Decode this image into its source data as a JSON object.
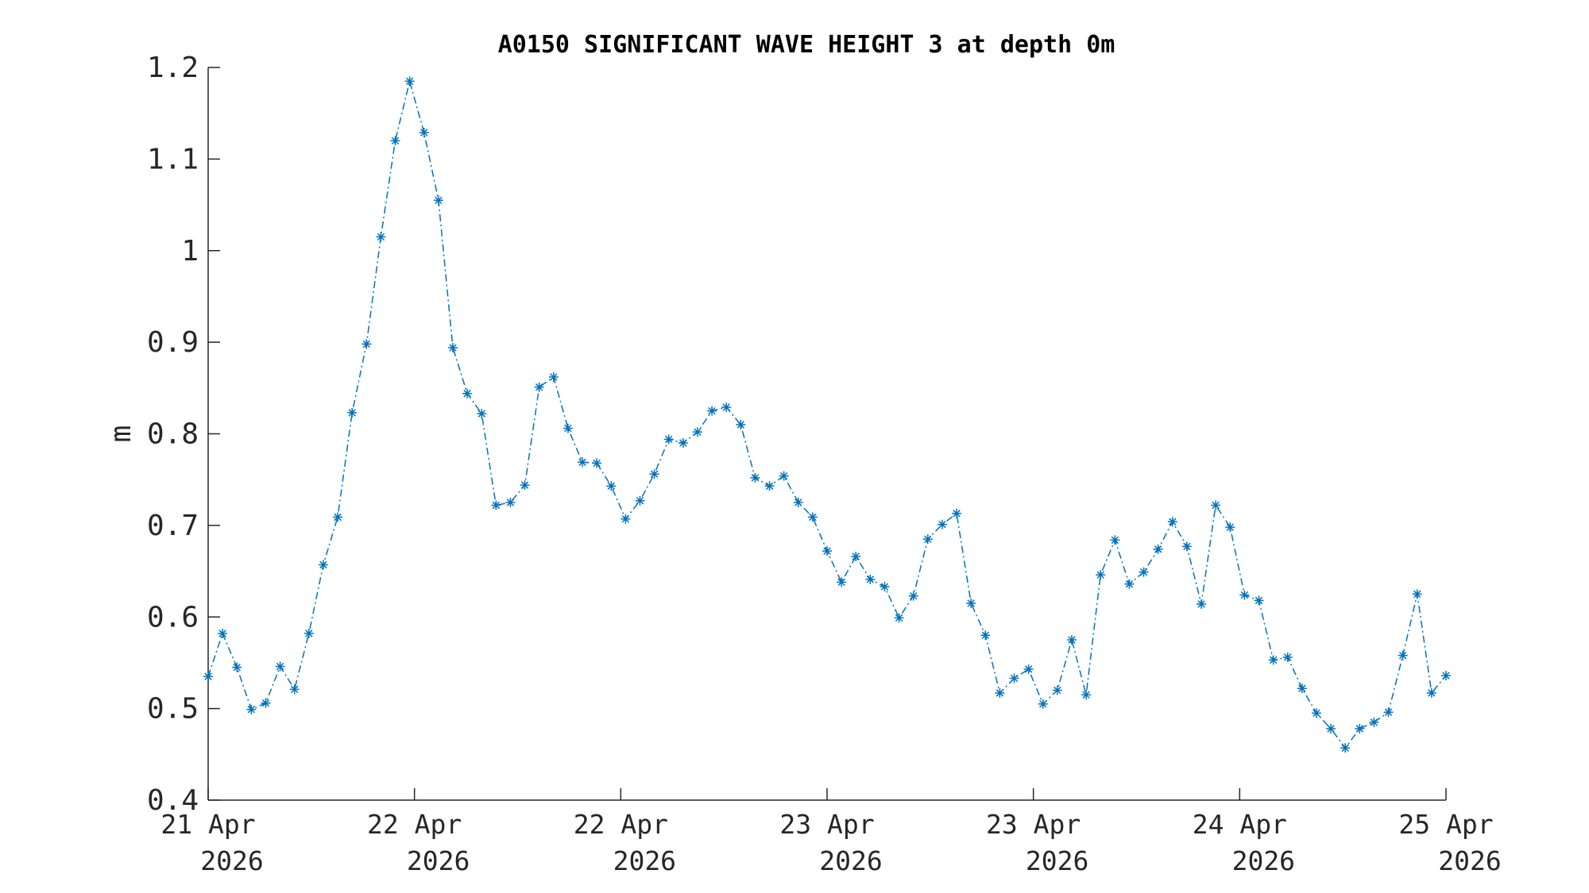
{
  "chart_data": {
    "type": "line",
    "title": "A0150 SIGNIFICANT WAVE HEIGHT 3 at depth 0m",
    "xlabel": "",
    "ylabel": "m",
    "ylim": [
      0.4,
      1.2
    ],
    "yticks": [
      "0.4",
      "0.5",
      "0.6",
      "0.7",
      "0.8",
      "0.9",
      "1",
      "1.1",
      "1.2"
    ],
    "xticks": [
      {
        "line1": "21 Apr",
        "line2": "2026"
      },
      {
        "line1": "22 Apr",
        "line2": "2026"
      },
      {
        "line1": "22 Apr",
        "line2": "2026"
      },
      {
        "line1": "23 Apr",
        "line2": "2026"
      },
      {
        "line1": "23 Apr",
        "line2": "2026"
      },
      {
        "line1": "24 Apr",
        "line2": "2026"
      },
      {
        "line1": "25 Apr",
        "line2": "2026"
      }
    ],
    "grid": false,
    "color": "#0072BD",
    "marker": "asterisk",
    "line_style": "dash-dot",
    "series": [
      {
        "values": [
          0.535,
          0.582,
          0.545,
          0.499,
          0.506,
          0.546,
          0.521,
          0.582,
          0.657,
          0.709,
          0.823,
          0.898,
          1.015,
          1.12,
          1.185,
          1.129,
          1.055,
          0.894,
          0.844,
          0.822,
          0.722,
          0.725,
          0.744,
          0.851,
          0.862,
          0.806,
          0.769,
          0.768,
          0.743,
          0.707,
          0.727,
          0.756,
          0.794,
          0.79,
          0.802,
          0.825,
          0.829,
          0.81,
          0.752,
          0.743,
          0.754,
          0.725,
          0.709,
          0.672,
          0.638,
          0.666,
          0.641,
          0.633,
          0.599,
          0.623,
          0.685,
          0.701,
          0.713,
          0.615,
          0.58,
          0.517,
          0.533,
          0.543,
          0.505,
          0.52,
          0.575,
          0.515,
          0.646,
          0.684,
          0.636,
          0.649,
          0.674,
          0.704,
          0.677,
          0.614,
          0.722,
          0.698,
          0.624,
          0.618,
          0.553,
          0.556,
          0.522,
          0.495,
          0.478,
          0.457,
          0.478,
          0.485,
          0.496,
          0.558,
          0.625,
          0.517,
          0.536
        ]
      }
    ]
  }
}
